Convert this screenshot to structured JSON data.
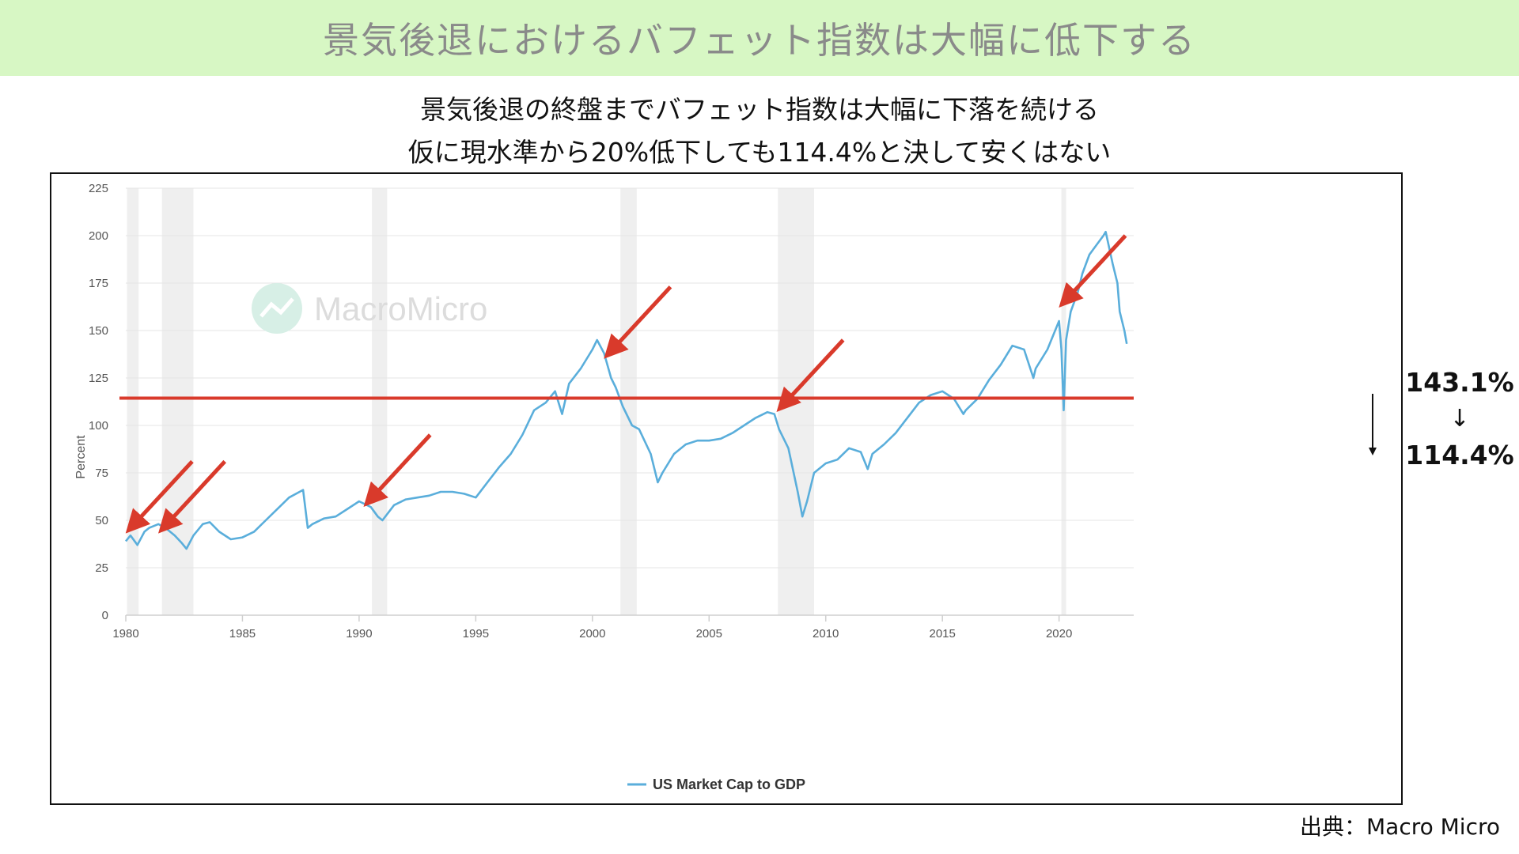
{
  "banner": {
    "title": "景気後退におけるバフェット指数は大幅に低下する"
  },
  "subtitle": {
    "line1": "景気後退の終盤までバフェット指数は大幅に下落を続ける",
    "line2": "仮に現水準から20%低下しても114.4%と決して安くはない"
  },
  "side_annotation": {
    "from": "143.1%",
    "arrow": "↓",
    "to": "114.4%"
  },
  "source": "出典：Macro Micro",
  "watermark": "MacroMicro",
  "colors": {
    "line": "#5aaedb",
    "reference": "#d93a2b",
    "recession": "#efefef",
    "banner": "#d7f7c4",
    "watermark": "#d7efe6"
  },
  "chart_data": {
    "type": "line",
    "ylabel": "Percent",
    "xlim": [
      1980,
      2023.2
    ],
    "ylim": [
      0,
      225
    ],
    "y_ticks": [
      0,
      25,
      50,
      75,
      100,
      125,
      150,
      175,
      200,
      225
    ],
    "x_ticks": [
      1980,
      1985,
      1990,
      1995,
      2000,
      2005,
      2010,
      2015,
      2020
    ],
    "grid": "horizontal",
    "legend_position": "bottom-center",
    "series": [
      {
        "name": "US Market Cap to GDP",
        "x": [
          1980.0,
          1980.2,
          1980.5,
          1980.8,
          1981.0,
          1981.4,
          1981.8,
          1982.1,
          1982.4,
          1982.6,
          1982.9,
          1983.3,
          1983.6,
          1984.0,
          1984.5,
          1985.0,
          1985.5,
          1986.0,
          1986.5,
          1987.0,
          1987.6,
          1987.8,
          1988.0,
          1988.5,
          1989.0,
          1989.5,
          1990.0,
          1990.5,
          1990.8,
          1991.0,
          1991.5,
          1992.0,
          1992.5,
          1993.0,
          1993.5,
          1994.0,
          1994.5,
          1995.0,
          1995.5,
          1996.0,
          1996.5,
          1997.0,
          1997.5,
          1998.0,
          1998.4,
          1998.7,
          1999.0,
          1999.5,
          2000.0,
          2000.2,
          2000.5,
          2000.8,
          2001.0,
          2001.3,
          2001.7,
          2002.0,
          2002.5,
          2002.8,
          2003.0,
          2003.5,
          2004.0,
          2004.5,
          2005.0,
          2005.5,
          2006.0,
          2006.5,
          2007.0,
          2007.5,
          2007.8,
          2008.0,
          2008.4,
          2008.8,
          2009.0,
          2009.2,
          2009.5,
          2010.0,
          2010.5,
          2011.0,
          2011.5,
          2011.8,
          2012.0,
          2012.5,
          2013.0,
          2013.5,
          2014.0,
          2014.5,
          2015.0,
          2015.5,
          2015.9,
          2016.0,
          2016.5,
          2017.0,
          2017.5,
          2018.0,
          2018.5,
          2018.9,
          2019.0,
          2019.5,
          2020.0,
          2020.1,
          2020.2,
          2020.3,
          2020.5,
          2020.8,
          2021.0,
          2021.3,
          2021.6,
          2021.9,
          2022.0,
          2022.3,
          2022.5,
          2022.6,
          2022.8,
          2022.9
        ],
        "values": [
          39,
          42,
          37,
          44,
          46,
          48,
          45,
          42,
          38,
          35,
          42,
          48,
          49,
          44,
          40,
          41,
          44,
          50,
          56,
          62,
          66,
          46,
          48,
          51,
          52,
          56,
          60,
          57,
          52,
          50,
          58,
          61,
          62,
          63,
          65,
          65,
          64,
          62,
          70,
          78,
          85,
          95,
          108,
          112,
          118,
          106,
          122,
          130,
          140,
          145,
          138,
          125,
          120,
          110,
          100,
          98,
          85,
          70,
          75,
          85,
          90,
          92,
          92,
          93,
          96,
          100,
          104,
          107,
          106,
          98,
          88,
          65,
          52,
          60,
          75,
          80,
          82,
          88,
          86,
          77,
          85,
          90,
          96,
          104,
          112,
          116,
          118,
          114,
          106,
          108,
          114,
          124,
          132,
          142,
          140,
          125,
          130,
          140,
          155,
          140,
          108,
          145,
          160,
          170,
          180,
          190,
          195,
          200,
          202,
          185,
          175,
          160,
          150,
          143
        ]
      }
    ],
    "recessions": [
      [
        1980.05,
        1980.55
      ],
      [
        1981.55,
        1982.9
      ],
      [
        1990.55,
        1991.2
      ],
      [
        2001.2,
        2001.9
      ],
      [
        2007.95,
        2009.5
      ],
      [
        2020.1,
        2020.3
      ]
    ],
    "reference_line": 114.4,
    "arrow_targets": [
      [
        1980.2,
        46
      ],
      [
        1981.6,
        46
      ],
      [
        1990.4,
        60
      ],
      [
        2000.7,
        138
      ],
      [
        2008.1,
        110
      ],
      [
        2020.2,
        165
      ]
    ]
  }
}
